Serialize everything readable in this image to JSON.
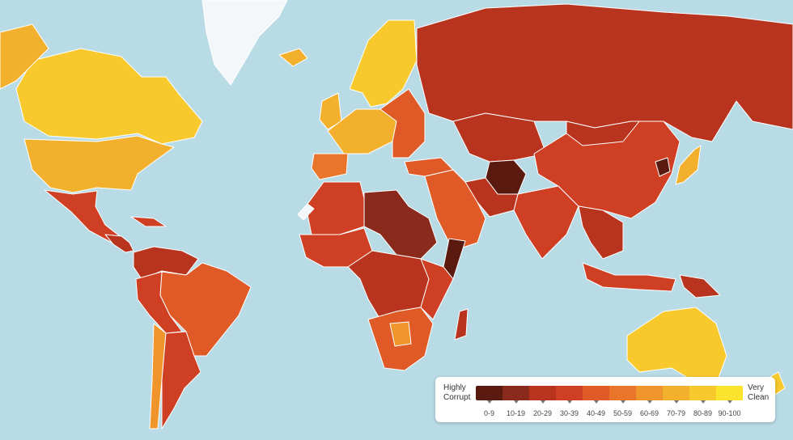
{
  "map": {
    "ocean_color": "#b9dbe6",
    "border_color": "#ffffff",
    "regions": [
      {
        "name": "canada",
        "bin": 8
      },
      {
        "name": "alaska",
        "bin": 7
      },
      {
        "name": "greenland",
        "bin": -1
      },
      {
        "name": "usa",
        "bin": 7
      },
      {
        "name": "mexico",
        "bin": 3
      },
      {
        "name": "central-america",
        "bin": 2
      },
      {
        "name": "caribbean",
        "bin": 3
      },
      {
        "name": "colombia-venezuela",
        "bin": 2
      },
      {
        "name": "brazil",
        "bin": 4
      },
      {
        "name": "peru-bolivia",
        "bin": 3
      },
      {
        "name": "chile",
        "bin": 6
      },
      {
        "name": "argentina",
        "bin": 3
      },
      {
        "name": "iceland",
        "bin": 7
      },
      {
        "name": "scandinavia",
        "bin": 8
      },
      {
        "name": "uk-ireland",
        "bin": 7
      },
      {
        "name": "western-europe",
        "bin": 7
      },
      {
        "name": "iberia",
        "bin": 5
      },
      {
        "name": "eastern-europe",
        "bin": 4
      },
      {
        "name": "russia",
        "bin": 2
      },
      {
        "name": "turkey",
        "bin": 4
      },
      {
        "name": "central-asia",
        "bin": 2
      },
      {
        "name": "afghanistan",
        "bin": 0
      },
      {
        "name": "middle-east",
        "bin": 4
      },
      {
        "name": "north-africa-west",
        "bin": 3
      },
      {
        "name": "libya-sudan",
        "bin": 1
      },
      {
        "name": "somalia",
        "bin": 0
      },
      {
        "name": "west-africa",
        "bin": 3
      },
      {
        "name": "central-africa",
        "bin": 2
      },
      {
        "name": "east-africa",
        "bin": 3
      },
      {
        "name": "southern-africa",
        "bin": 4
      },
      {
        "name": "botswana",
        "bin": 6
      },
      {
        "name": "madagascar",
        "bin": 2
      },
      {
        "name": "western-sahara",
        "bin": -1
      },
      {
        "name": "india",
        "bin": 3
      },
      {
        "name": "pakistan-iran",
        "bin": 2
      },
      {
        "name": "china",
        "bin": 3
      },
      {
        "name": "mongolia",
        "bin": 2
      },
      {
        "name": "north-korea",
        "bin": 0
      },
      {
        "name": "japan",
        "bin": 7
      },
      {
        "name": "southeast-asia",
        "bin": 2
      },
      {
        "name": "indonesia",
        "bin": 3
      },
      {
        "name": "papua",
        "bin": 2
      },
      {
        "name": "australia",
        "bin": 8
      },
      {
        "name": "new-zealand",
        "bin": 8
      }
    ]
  },
  "legend": {
    "left_label_line1": "Highly",
    "left_label_line2": "Corrupt",
    "right_label_line1": "Very",
    "right_label_line2": "Clean",
    "ranges": [
      "0-9",
      "10-19",
      "20-29",
      "30-39",
      "40-49",
      "50-59",
      "60-69",
      "70-79",
      "80-89",
      "90-100"
    ],
    "colors": [
      "#5a1a10",
      "#8a2a1c",
      "#b8341f",
      "#cf3f24",
      "#e05a28",
      "#e8752a",
      "#ef952c",
      "#f3b02c",
      "#f7c92c",
      "#fbe32e"
    ],
    "no_data_color": "#f4f7fa"
  }
}
